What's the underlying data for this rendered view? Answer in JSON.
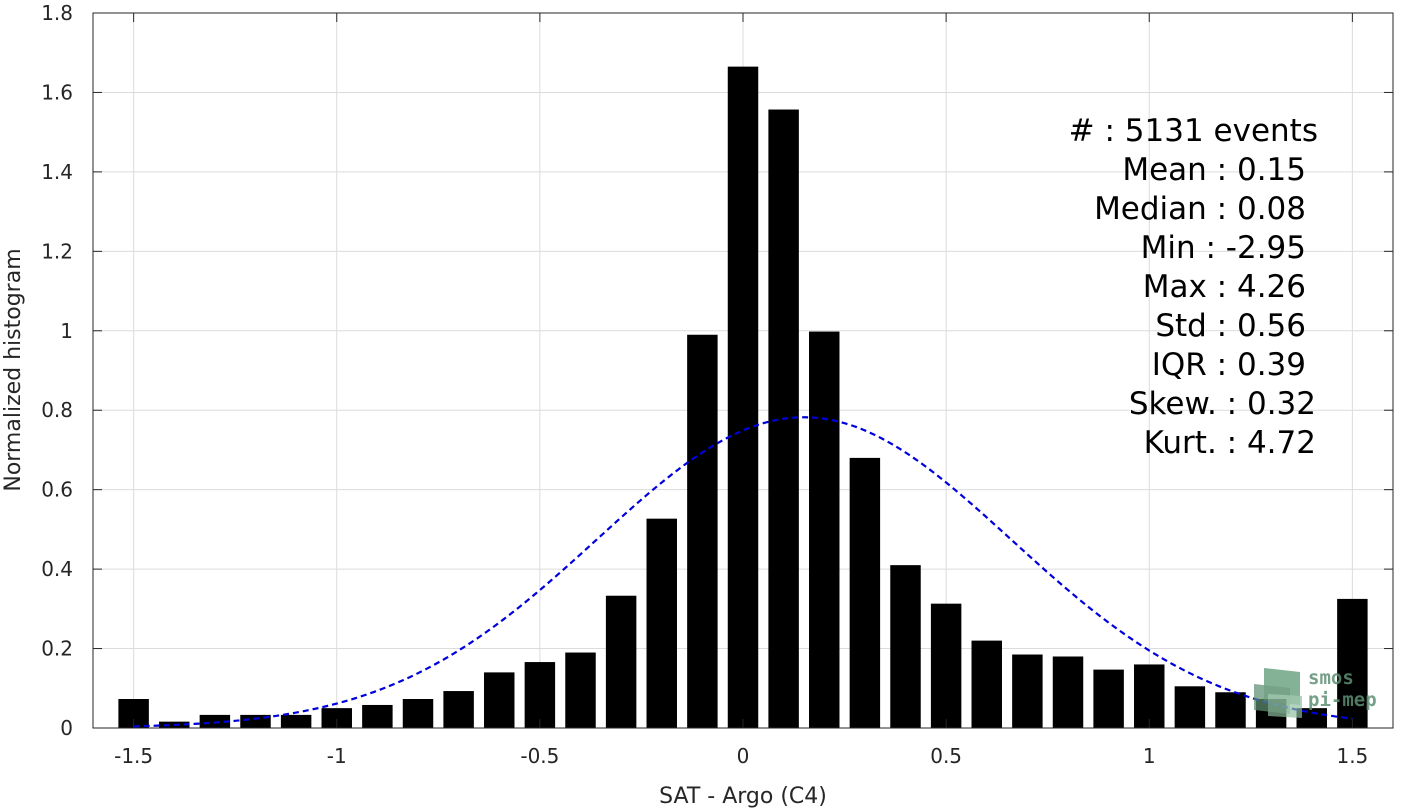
{
  "chart_data": {
    "type": "bar",
    "xlabel": "SAT - Argo (C4)",
    "ylabel": "Normalized histogram",
    "xlim": [
      -1.6,
      1.6
    ],
    "ylim": [
      0,
      1.8
    ],
    "xticks": [
      -1.5,
      -1,
      -0.5,
      0,
      0.5,
      1,
      1.5
    ],
    "xtick_labels": [
      "-1.5",
      "-1",
      "-0.5",
      "0",
      "0.5",
      "1",
      "1.5"
    ],
    "yticks": [
      0,
      0.2,
      0.4,
      0.6,
      0.8,
      1,
      1.2,
      1.4,
      1.6,
      1.8
    ],
    "ytick_labels": [
      "0",
      "0.2",
      "0.4",
      "0.6",
      "0.8",
      "1",
      "1.2",
      "1.4",
      "1.6",
      "1.8"
    ],
    "grid": true,
    "bar_width": 0.075,
    "bar_color": "#000000",
    "series": [
      {
        "x": [
          -1.5,
          -1.4,
          -1.3,
          -1.2,
          -1.1,
          -1.0,
          -0.9,
          -0.8,
          -0.7,
          -0.6,
          -0.5,
          -0.4,
          -0.3,
          -0.2,
          -0.1,
          0.0,
          0.1,
          0.2,
          0.3,
          0.4,
          0.5,
          0.6,
          0.7,
          0.8,
          0.9,
          1.0,
          1.1,
          1.2,
          1.3,
          1.4,
          1.5
        ],
        "values": [
          0.073,
          0.016,
          0.033,
          0.033,
          0.033,
          0.05,
          0.058,
          0.073,
          0.093,
          0.14,
          0.166,
          0.19,
          0.333,
          0.527,
          0.99,
          1.665,
          1.557,
          0.998,
          0.68,
          0.41,
          0.313,
          0.22,
          0.185,
          0.18,
          0.147,
          0.16,
          0.105,
          0.09,
          0.073,
          0.05,
          0.325
        ]
      }
    ],
    "fit_curve": {
      "style": "dashed",
      "color": "#0000dd",
      "mean": 0.15,
      "std": 0.51,
      "xrange": [
        -1.5,
        1.5
      ]
    }
  },
  "stats": {
    "count": "#  : 5131 events",
    "mean": "Mean : 0.15",
    "median": "Median : 0.08",
    "min": "Min : -2.95",
    "max": "Max : 4.26",
    "std": "Std : 0.56",
    "iqr": "IQR : 0.39",
    "skew": "Skew. : 0.32",
    "kurt": "Kurt. : 4.72"
  },
  "logo": {
    "line1": "smos",
    "line2": "pi-mep",
    "icon": "smos-pimep-logo-icon",
    "color": "#5e8f72"
  }
}
